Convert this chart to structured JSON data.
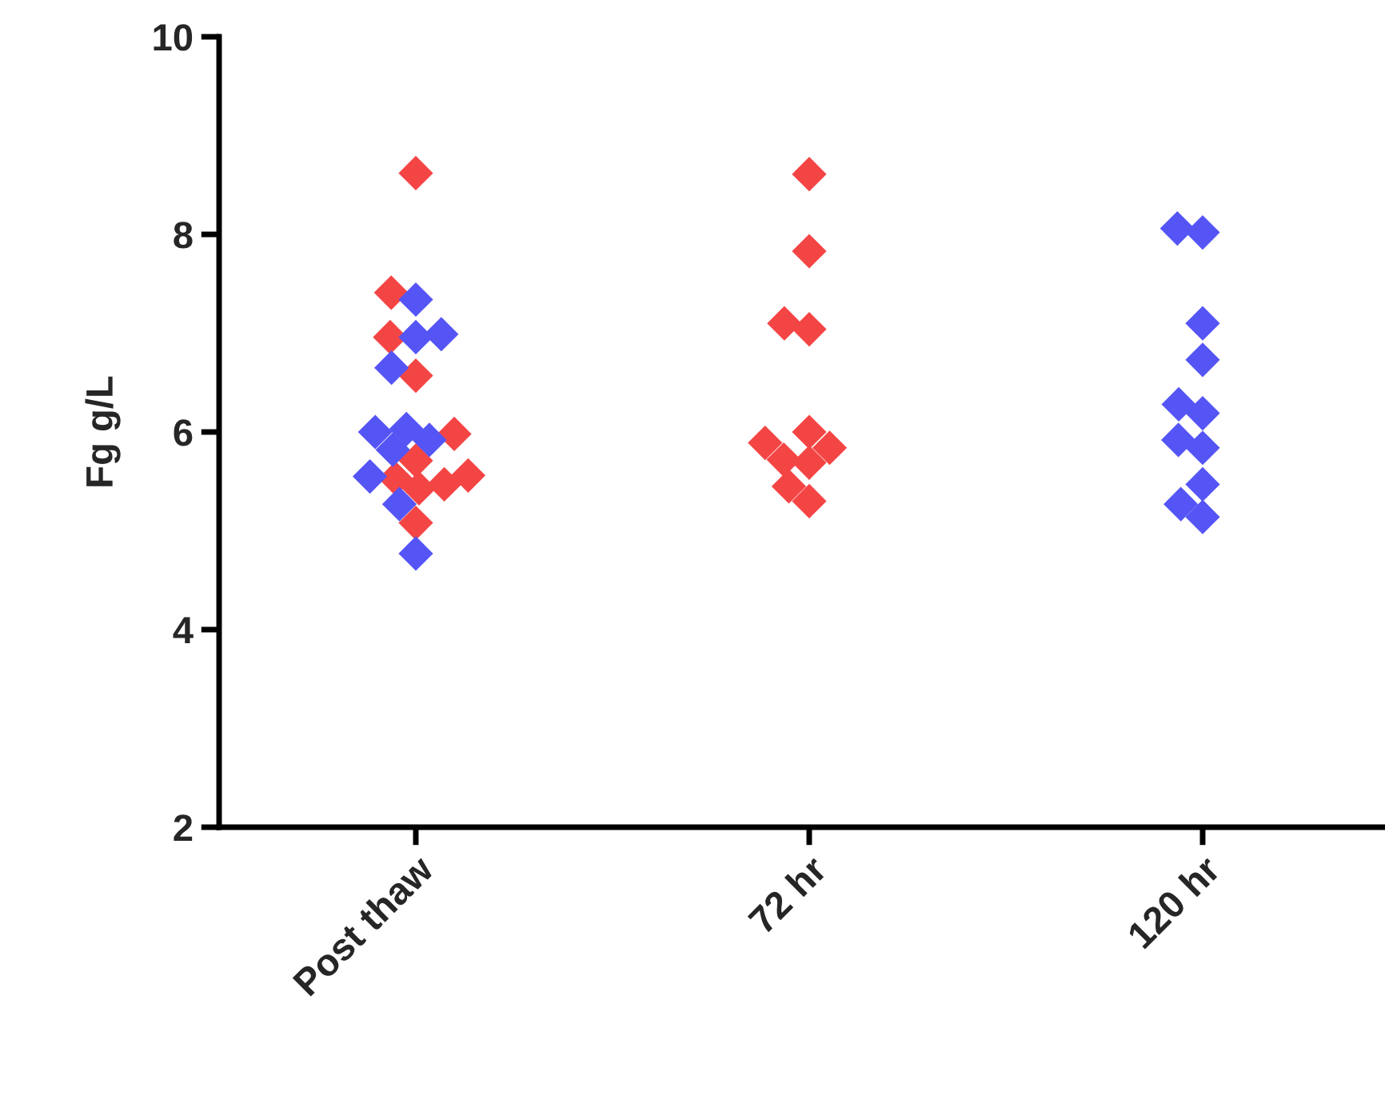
{
  "chart_data": {
    "type": "scatter",
    "ylabel": "Fg g/L",
    "marker": "diamond",
    "grid": false,
    "categories": [
      "Post thaw",
      "72 hr",
      "120 hr"
    ],
    "ylim": [
      2,
      10
    ],
    "yticks": [
      2,
      4,
      6,
      8,
      10
    ],
    "series": [
      {
        "color": "#f44545",
        "x": [
          "Post thaw",
          "Post thaw",
          "Post thaw",
          "Post thaw",
          "Post thaw",
          "Post thaw",
          "Post thaw",
          "Post thaw",
          "Post thaw",
          "Post thaw",
          "Post thaw",
          "72 hr",
          "72 hr",
          "72 hr",
          "72 hr",
          "72 hr",
          "72 hr",
          "72 hr",
          "72 hr",
          "72 hr",
          "72 hr",
          "72 hr"
        ],
        "values": [
          8.62,
          7.41,
          6.96,
          6.57,
          5.98,
          5.43,
          5.56,
          5.71,
          5.47,
          5.53,
          5.08,
          8.61,
          7.83,
          7.04,
          7.1,
          5.89,
          5.69,
          5.84,
          6.0,
          5.72,
          5.3,
          5.45
        ]
      },
      {
        "color": "#5555f5",
        "x": [
          "Post thaw",
          "Post thaw",
          "Post thaw",
          "Post thaw",
          "Post thaw",
          "Post thaw",
          "Post thaw",
          "Post thaw",
          "Post thaw",
          "Post thaw",
          "Post thaw",
          "120 hr",
          "120 hr",
          "120 hr",
          "120 hr",
          "120 hr",
          "120 hr",
          "120 hr",
          "120 hr",
          "120 hr",
          "120 hr",
          "120 hr"
        ],
        "values": [
          7.34,
          6.96,
          6.99,
          6.65,
          6.03,
          5.92,
          5.82,
          6.0,
          5.55,
          5.27,
          4.77,
          8.06,
          8.02,
          7.1,
          6.73,
          6.28,
          6.19,
          5.92,
          5.84,
          5.47,
          5.14,
          5.27
        ]
      }
    ]
  }
}
